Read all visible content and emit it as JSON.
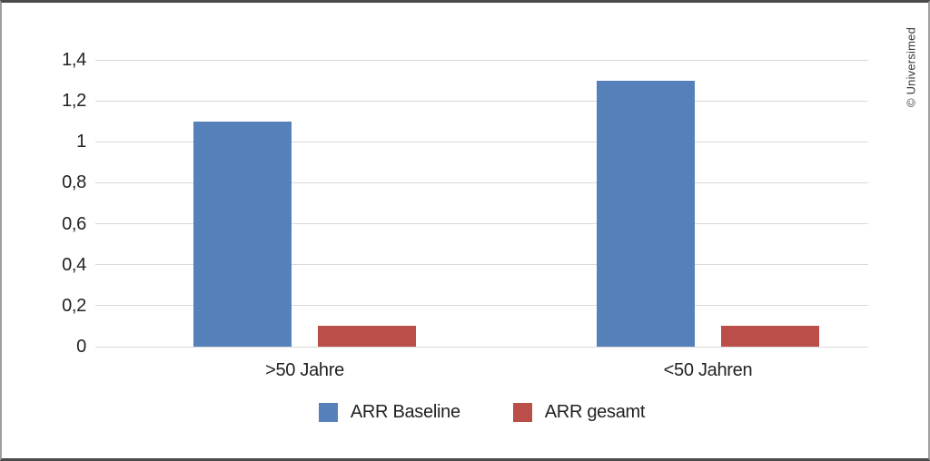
{
  "frame": {
    "copyright": "© Universimed"
  },
  "colors": {
    "series_blue": "#5580B9",
    "series_red": "#BC4E49",
    "gridline": "#D9D9D9",
    "text": "#222222",
    "copyright_text": "#3a3a3a",
    "background": "#FFFFFF",
    "border_dark": "#4A4A4A",
    "border_light": "#9E9E9E"
  },
  "chart_data": {
    "type": "bar",
    "title": "",
    "xlabel": "",
    "ylabel": "",
    "categories": [
      ">50 Jahre",
      "<50 Jahren"
    ],
    "series": [
      {
        "name": "ARR Baseline",
        "color": "#5580B9",
        "values": [
          1.1,
          1.3
        ]
      },
      {
        "name": "ARR gesamt",
        "color": "#BC4E49",
        "values": [
          0.1,
          0.1
        ]
      }
    ],
    "ylim": [
      0,
      1.4
    ],
    "ytick_values": [
      0,
      0.2,
      0.4,
      0.6,
      0.8,
      1,
      1.2,
      1.4
    ],
    "ytick_labels": [
      "0",
      "0,2",
      "0,4",
      "0,6",
      "0,8",
      "1",
      "1,2",
      "1,4"
    ],
    "grid": true,
    "legend_position": "bottom",
    "decimal_separator": ","
  }
}
